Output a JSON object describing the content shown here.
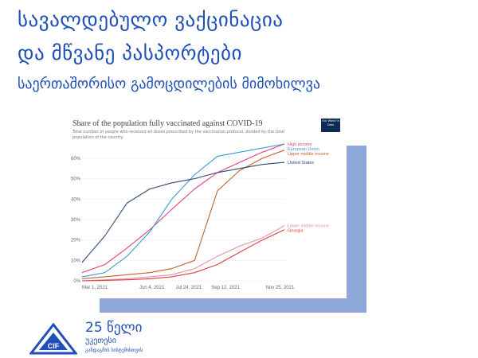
{
  "header": {
    "title_line1": "სავალდებულო ვაქცინაცია",
    "title_line2": "და მწვანე პასპორტები",
    "subtitle": "საერთაშორისო გამოცდილების მიმოხილვა"
  },
  "chart_data": {
    "type": "line",
    "title": "Share of the population fully vaccinated against COVID-19",
    "subtitle": "Total number of people who received all doses prescribed by the vaccination protocol, divided by the total population of the country.",
    "source_badge": "Our World in Data",
    "x_ticks": [
      "Mar 1, 2021",
      "Jun 4, 2021",
      "Jul 24, 2021",
      "Sep 12, 2021",
      "Nov 25, 2021"
    ],
    "y_ticks": [
      "0%",
      "10%",
      "20%",
      "30%",
      "40%",
      "50%",
      "60%"
    ],
    "ylim": [
      0,
      67
    ],
    "grid": true,
    "x": [
      "2021-03-01",
      "2021-04-01",
      "2021-05-01",
      "2021-06-01",
      "2021-07-01",
      "2021-08-01",
      "2021-09-01",
      "2021-10-01",
      "2021-11-01",
      "2021-12-01"
    ],
    "series": [
      {
        "name": "High income",
        "color": "#e8417b",
        "values": [
          4,
          8,
          16,
          25,
          35,
          45,
          53,
          58,
          63,
          67
        ]
      },
      {
        "name": "European Union",
        "color": "#3a9bd5",
        "values": [
          2,
          4,
          12,
          24,
          40,
          52,
          61,
          63,
          65,
          67
        ]
      },
      {
        "name": "Upper middle income",
        "color": "#c8602b",
        "values": [
          1,
          2,
          3,
          4,
          6,
          10,
          44,
          54,
          60,
          64
        ]
      },
      {
        "name": "Lower middle income",
        "color": "#e68ea8",
        "values": [
          0,
          0.5,
          1,
          2,
          3,
          6,
          12,
          17,
          21,
          27
        ]
      },
      {
        "name": "Georgia",
        "color": "#d94040",
        "values": [
          0,
          0.2,
          0.5,
          1,
          2,
          4,
          8,
          14,
          20,
          25
        ]
      },
      {
        "name": "United States",
        "color": "#2f4a78",
        "values": [
          9,
          22,
          38,
          45,
          48,
          50,
          53,
          55,
          57,
          58
        ]
      }
    ]
  },
  "logo": {
    "line1": "25 წელი",
    "line2": "უკეთესი",
    "line3": "განდაგმის სისტემისთვის",
    "mark_text": "CIF"
  }
}
